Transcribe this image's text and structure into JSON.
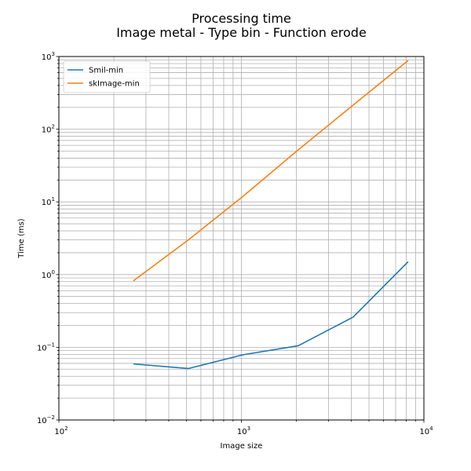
{
  "chart_data": {
    "type": "line",
    "title": "Processing time",
    "subtitle": "Image metal - Type bin - Function erode",
    "xlabel": "Image size",
    "ylabel": "Time (ms)",
    "xscale": "log",
    "yscale": "log",
    "xlim": [
      100,
      10000
    ],
    "ylim": [
      0.01,
      1000
    ],
    "grid": "both (major and minor)",
    "legend_position": "top-left",
    "x_ticks": [
      {
        "base": "10",
        "exp": "2"
      },
      {
        "base": "10",
        "exp": "3"
      },
      {
        "base": "10",
        "exp": "4"
      }
    ],
    "y_ticks": [
      {
        "base": "10",
        "exp": "−2"
      },
      {
        "base": "10",
        "exp": "−1"
      },
      {
        "base": "10",
        "exp": "0"
      },
      {
        "base": "10",
        "exp": "1"
      },
      {
        "base": "10",
        "exp": "2"
      },
      {
        "base": "10",
        "exp": "3"
      }
    ],
    "x": [
      256,
      512,
      1024,
      2048,
      4096,
      8192
    ],
    "series": [
      {
        "name": "Smil-min",
        "color": "#1f77b4",
        "values": [
          0.059,
          0.051,
          0.079,
          0.105,
          0.26,
          1.5
        ]
      },
      {
        "name": "skImage-min",
        "color": "#ff7f0e",
        "values": [
          0.82,
          3.0,
          12.0,
          52.0,
          215.0,
          880.0
        ]
      }
    ]
  }
}
